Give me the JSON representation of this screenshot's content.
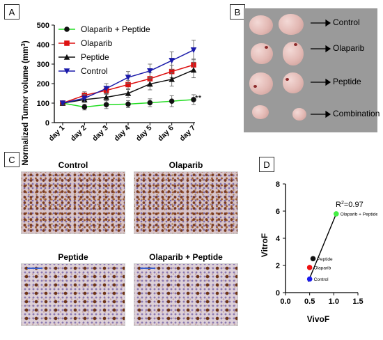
{
  "panels": {
    "a": "A",
    "b": "B",
    "c": "C",
    "d": "D"
  },
  "chart_data": [
    {
      "type": "line",
      "ylabel": "Normalized Tumor volume (mm³)",
      "ylabel_base": "Normalized Tumor volume (mm",
      "ylabel_sup": "3",
      "ylabel_end": ")",
      "ylim": [
        0,
        500
      ],
      "yticks": [
        "0",
        "100",
        "200",
        "300",
        "400",
        "500"
      ],
      "categories": [
        "day 1",
        "day 2",
        "day 3",
        "day 4",
        "day 5",
        "day 6",
        "day 7"
      ],
      "annotation": "**",
      "legend_position": "top-left",
      "series": [
        {
          "name": "Olaparib + Peptide",
          "color": "#22dd22",
          "marker": "circle",
          "values": [
            100,
            80,
            92,
            95,
            102,
            110,
            118
          ],
          "err": [
            10,
            15,
            20,
            18,
            20,
            28,
            25
          ]
        },
        {
          "name": "Olaparib",
          "color": "#dd1111",
          "marker": "square",
          "values": [
            100,
            140,
            165,
            195,
            225,
            262,
            296
          ],
          "err": [
            8,
            18,
            20,
            22,
            30,
            32,
            30
          ]
        },
        {
          "name": "Peptide",
          "color": "#111111",
          "marker": "triangle",
          "values": [
            100,
            118,
            130,
            150,
            198,
            222,
            270
          ],
          "err": [
            8,
            15,
            18,
            20,
            30,
            35,
            40
          ]
        },
        {
          "name": "Control",
          "color": "#1a1aaa",
          "marker": "triangle-down",
          "values": [
            100,
            125,
            175,
            232,
            265,
            318,
            372
          ],
          "err": [
            8,
            20,
            25,
            30,
            35,
            45,
            50
          ]
        }
      ]
    },
    {
      "type": "scatter",
      "xlabel": "VivoF",
      "ylabel": "VitroF",
      "xlim": [
        0,
        1.5
      ],
      "ylim": [
        0,
        8
      ],
      "xticks": [
        "0.0",
        "0.5",
        "1.0",
        "1.5"
      ],
      "yticks": [
        "0",
        "2",
        "4",
        "6",
        "8"
      ],
      "annotation": "R²=0.97",
      "annotation_base": "R",
      "annotation_sup": "2",
      "annotation_end": "=0.97",
      "points": [
        {
          "label": "Control",
          "x": 0.5,
          "y": 1.0,
          "color": "#1a1aee"
        },
        {
          "label": "Olaparib",
          "x": 0.5,
          "y": 1.85,
          "color": "#ee1111"
        },
        {
          "label": "Peptide",
          "x": 0.57,
          "y": 2.5,
          "color": "#111111"
        },
        {
          "label": "Olaparib + Peptide",
          "x": 1.05,
          "y": 5.8,
          "color": "#44ee44"
        }
      ],
      "fit_line": {
        "x": [
          0.47,
          1.05
        ],
        "y": [
          0.8,
          5.8
        ]
      }
    }
  ],
  "tumor_photo": {
    "labels": [
      "Control",
      "Olaparib",
      "Peptide",
      "Combination"
    ]
  },
  "ihc": {
    "titles": [
      "Control",
      "Olaparib",
      "Peptide",
      "Olaparib + Peptide"
    ]
  }
}
